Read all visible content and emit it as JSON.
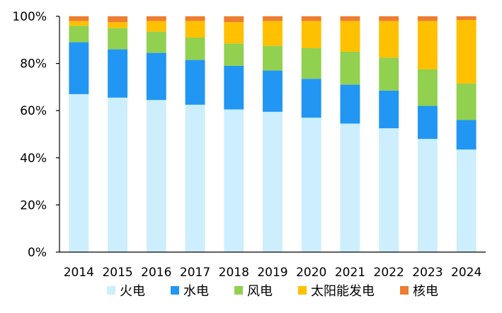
{
  "chart_data": {
    "type": "bar",
    "stacked": true,
    "percent_stacked": true,
    "categories": [
      "2014",
      "2015",
      "2016",
      "2017",
      "2018",
      "2019",
      "2020",
      "2021",
      "2022",
      "2023",
      "2024"
    ],
    "ylim": [
      0,
      100
    ],
    "yticks": [
      0,
      20,
      40,
      60,
      80,
      100
    ],
    "ytick_labels": [
      "0%",
      "20%",
      "40%",
      "60%",
      "80%",
      "100%"
    ],
    "grid": false,
    "legend_position": "bottom",
    "series": [
      {
        "name": "火电",
        "color": "#cdeefd",
        "values": [
          67,
          65.5,
          64.5,
          62.5,
          60.5,
          59.5,
          57,
          54.5,
          52.5,
          48,
          43.5
        ]
      },
      {
        "name": "水电",
        "color": "#2196f3",
        "values": [
          22,
          20.5,
          20,
          19,
          18.5,
          17.5,
          16.5,
          16.5,
          16,
          14,
          12.5
        ]
      },
      {
        "name": "风电",
        "color": "#92d050",
        "values": [
          7,
          9,
          9,
          9.5,
          9.5,
          10.5,
          13,
          14,
          14,
          15.5,
          15.5
        ]
      },
      {
        "name": "太阳能发电",
        "color": "#ffc000",
        "values": [
          2,
          2.5,
          4.5,
          7,
          9,
          10.5,
          11.5,
          13,
          15.5,
          20.5,
          27
        ]
      },
      {
        "name": "核电",
        "color": "#ed7d31",
        "values": [
          2,
          2.5,
          2,
          2,
          2.5,
          2,
          2,
          2,
          2,
          2,
          1.5
        ]
      }
    ]
  }
}
